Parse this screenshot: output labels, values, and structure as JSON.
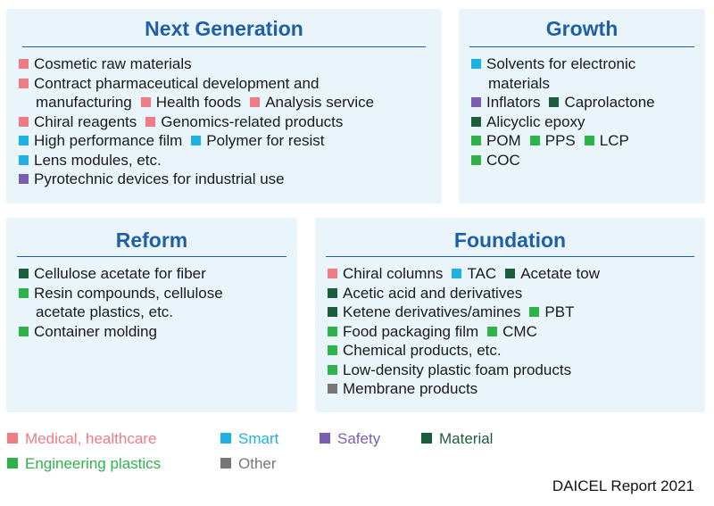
{
  "colors": {
    "medical": "#ef7b85",
    "smart": "#1fb0e6",
    "safety": "#7a5fb0",
    "material": "#1b5e3c",
    "engineering": "#2db34a",
    "other": "#777777",
    "title": "#1f5fa8",
    "panel_bg": "#e9f4fb"
  },
  "panels": {
    "next_generation": {
      "title": "Next Generation",
      "lines": [
        [
          {
            "cat": "medical",
            "text": "Cosmetic raw materials"
          }
        ],
        [
          {
            "cat": "medical",
            "text": "Contract pharmaceutical development and"
          }
        ],
        [
          {
            "cat": null,
            "text": "manufacturing"
          },
          {
            "cat": "medical",
            "text": "Health foods"
          },
          {
            "cat": "medical",
            "text": "Analysis service"
          }
        ],
        [
          {
            "cat": "medical",
            "text": "Chiral reagents"
          },
          {
            "cat": "medical",
            "text": "Genomics-related products"
          }
        ],
        [
          {
            "cat": "smart",
            "text": "High performance film"
          },
          {
            "cat": "smart",
            "text": "Polymer for resist"
          }
        ],
        [
          {
            "cat": "smart",
            "text": "Lens modules, etc."
          }
        ],
        [
          {
            "cat": "safety",
            "text": "Pyrotechnic devices for industrial use"
          }
        ]
      ]
    },
    "growth": {
      "title": "Growth",
      "lines": [
        [
          {
            "cat": "smart",
            "text": "Solvents for electronic"
          }
        ],
        [
          {
            "cat": null,
            "text": "materials"
          }
        ],
        [
          {
            "cat": "safety",
            "text": "Inflators"
          },
          {
            "cat": "material",
            "text": "Caprolactone"
          }
        ],
        [
          {
            "cat": "material",
            "text": "Alicyclic epoxy"
          }
        ],
        [
          {
            "cat": "engineering",
            "text": "POM"
          },
          {
            "cat": "engineering",
            "text": "PPS"
          },
          {
            "cat": "engineering",
            "text": "LCP"
          }
        ],
        [
          {
            "cat": "engineering",
            "text": "COC"
          }
        ]
      ]
    },
    "reform": {
      "title": "Reform",
      "lines": [
        [
          {
            "cat": "material",
            "text": "Cellulose acetate for fiber"
          }
        ],
        [
          {
            "cat": "engineering",
            "text": "Resin compounds, cellulose"
          }
        ],
        [
          {
            "cat": null,
            "text": "acetate plastics, etc."
          }
        ],
        [
          {
            "cat": "engineering",
            "text": "Container molding"
          }
        ]
      ]
    },
    "foundation": {
      "title": "Foundation",
      "lines": [
        [
          {
            "cat": "medical",
            "text": "Chiral columns"
          },
          {
            "cat": "smart",
            "text": "TAC"
          },
          {
            "cat": "material",
            "text": "Acetate tow"
          }
        ],
        [
          {
            "cat": "material",
            "text": "Acetic acid and derivatives"
          }
        ],
        [
          {
            "cat": "material",
            "text": "Ketene derivatives/amines"
          },
          {
            "cat": "engineering",
            "text": "PBT"
          }
        ],
        [
          {
            "cat": "engineering",
            "text": "Food packaging film"
          },
          {
            "cat": "engineering",
            "text": "CMC"
          }
        ],
        [
          {
            "cat": "engineering",
            "text": "Chemical products, etc."
          }
        ],
        [
          {
            "cat": "engineering",
            "text": "Low-density plastic foam products"
          }
        ],
        [
          {
            "cat": "other",
            "text": "Membrane products"
          }
        ]
      ]
    }
  },
  "legend": [
    {
      "cat": "medical",
      "label": "Medical, healthcare"
    },
    {
      "cat": "smart",
      "label": "Smart"
    },
    {
      "cat": "safety",
      "label": "Safety"
    },
    {
      "cat": "material",
      "label": "Material"
    },
    {
      "cat": "engineering",
      "label": "Engineering plastics"
    },
    {
      "cat": "other",
      "label": "Other"
    }
  ],
  "credit": "DAICEL Report 2021"
}
